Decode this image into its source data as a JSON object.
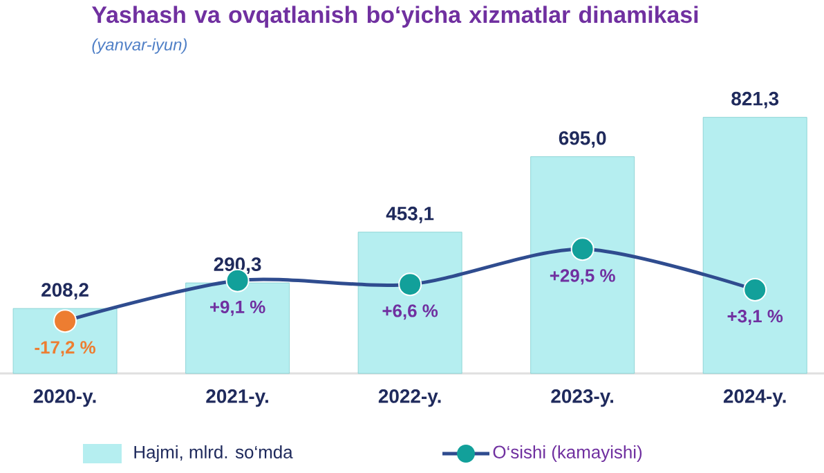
{
  "chart_data": {
    "type": "bar",
    "title": "Yashash va ovqatlanish bo‘yicha xizmatlar dinamikasi",
    "subtitle": "(yanvar-iyun)",
    "categories": [
      "2020-y.",
      "2021-y.",
      "2022-y.",
      "2023-y.",
      "2024-y."
    ],
    "series": [
      {
        "name": "Hajmi, mlrd. so‘mda",
        "color": "#b5eef0",
        "values": [
          208.2,
          290.3,
          453.1,
          695.0,
          821.3
        ],
        "value_labels": [
          "208,2",
          "290,3",
          "453,1",
          "695,0",
          "821,3"
        ]
      },
      {
        "name": "O‘sishi (kamayishi)",
        "type": "line",
        "axis": "y2",
        "color": "#2f4c8f",
        "colors": [
          "#ed7d31",
          "#12a09a",
          "#12a09a",
          "#12a09a",
          "#12a09a"
        ],
        "marker": "circle",
        "values": [
          -17.2,
          9.1,
          6.6,
          29.5,
          3.1
        ],
        "value_labels": [
          "-17,2 %",
          "+9,1 %",
          "+6,6 %",
          "+29,5 %",
          "+3,1 %"
        ]
      }
    ],
    "tick_labels": "x",
    "legend": "bottom"
  }
}
